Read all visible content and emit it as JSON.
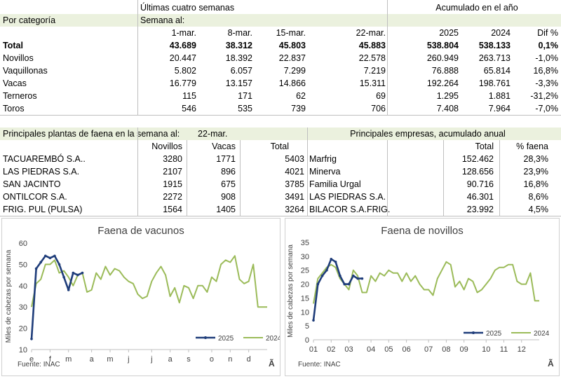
{
  "summary": {
    "section_label": "Últimas cuatro semanas",
    "acum_label": "Acumulado en el año",
    "category_label": "Por categoría",
    "week_label": "Semana al:",
    "weeks": [
      "1-mar.",
      "8-mar.",
      "15-mar.",
      "22-mar."
    ],
    "years": [
      "2025",
      "2024"
    ],
    "diff_label": "Dif %",
    "rows": [
      {
        "name": "Total",
        "w": [
          "43.689",
          "38.312",
          "45.803",
          "45.883"
        ],
        "y2025": "538.804",
        "y2024": "538.133",
        "dif": "0,1%"
      },
      {
        "name": "Novillos",
        "w": [
          "20.447",
          "18.392",
          "22.837",
          "22.578"
        ],
        "y2025": "260.949",
        "y2024": "263.713",
        "dif": "-1,0%"
      },
      {
        "name": "Vaquillonas",
        "w": [
          "5.802",
          "6.057",
          "7.299",
          "7.219"
        ],
        "y2025": "76.888",
        "y2024": "65.814",
        "dif": "16,8%"
      },
      {
        "name": "Vacas",
        "w": [
          "16.779",
          "13.157",
          "14.866",
          "15.311"
        ],
        "y2025": "192.264",
        "y2024": "198.761",
        "dif": "-3,3%"
      },
      {
        "name": "Terneros",
        "w": [
          "115",
          "171",
          "62",
          "69"
        ],
        "y2025": "1.295",
        "y2024": "1.881",
        "dif": "-31,2%"
      },
      {
        "name": "Toros",
        "w": [
          "546",
          "535",
          "739",
          "706"
        ],
        "y2025": "7.408",
        "y2024": "7.964",
        "dif": "-7,0%"
      }
    ]
  },
  "plants": {
    "title": "Principales plantas de faena en la semana al:",
    "date": "22-mar.",
    "cols": [
      "Novillos",
      "Vacas",
      "Total"
    ],
    "rows": [
      {
        "name": "TACUAREMBÓ S.A..",
        "novillos": "3280",
        "vacas": "1771",
        "total": "5403"
      },
      {
        "name": "LAS PIEDRAS S.A.",
        "novillos": "2107",
        "vacas": "896",
        "total": "4021"
      },
      {
        "name": "SAN JACINTO",
        "novillos": "1915",
        "vacas": "675",
        "total": "3785"
      },
      {
        "name": "ONTILCOR S.A.",
        "novillos": "2272",
        "vacas": "908",
        "total": "3491"
      },
      {
        "name": "FRIG. PUL (PULSA)",
        "novillos": "1564",
        "vacas": "1405",
        "total": "3264"
      }
    ]
  },
  "companies": {
    "title": "Principales empresas, acumulado anual",
    "cols": [
      "Total",
      "% faena"
    ],
    "rows": [
      {
        "name": "Marfrig",
        "total": "152.462",
        "pct": "28,3%"
      },
      {
        "name": "Minerva",
        "total": "128.656",
        "pct": "23,9%"
      },
      {
        "name": "Familia Urgal",
        "total": "90.716",
        "pct": "16,8%"
      },
      {
        "name": "LAS PIEDRAS S.A.",
        "total": "46.301",
        "pct": "8,6%"
      },
      {
        "name": "BILACOR S.A.FRIG.",
        "total": "23.992",
        "pct": "4,5%"
      }
    ]
  },
  "colors": {
    "s2025": "#1f3d7a",
    "s2024": "#9bbb59",
    "header_bg": "#ebf1de"
  },
  "chart_data": [
    {
      "type": "line",
      "title": "Faena de vacunos",
      "ylabel": "Miles de cabezas por semana",
      "source": "Fuente: INAC",
      "corner_mark": "Ã",
      "ylim": [
        10,
        60
      ],
      "yticks": [
        "10",
        "20",
        "30",
        "40",
        "50",
        "60"
      ],
      "xlim": [
        1,
        52
      ],
      "xticks": [
        {
          "label": "e",
          "x": 1
        },
        {
          "label": "f",
          "x": 5
        },
        {
          "label": "m",
          "x": 9
        },
        {
          "label": "a",
          "x": 14
        },
        {
          "label": "m",
          "x": 18
        },
        {
          "label": "j",
          "x": 22
        },
        {
          "label": "j",
          "x": 27
        },
        {
          "label": "a",
          "x": 31
        },
        {
          "label": "s",
          "x": 35
        },
        {
          "label": "o",
          "x": 40
        },
        {
          "label": "n",
          "x": 44
        },
        {
          "label": "d",
          "x": 48
        }
      ],
      "legend_position": "bottom-right",
      "series": [
        {
          "name": "2025",
          "x": [
            1,
            2,
            3,
            4,
            5,
            6,
            7,
            8,
            9,
            10,
            11,
            12
          ],
          "values": [
            15,
            48,
            51,
            54,
            53,
            54,
            50,
            44,
            38,
            46,
            45,
            46
          ],
          "markers": true
        },
        {
          "name": "2024",
          "x": [
            1,
            2,
            3,
            4,
            5,
            6,
            7,
            8,
            9,
            10,
            11,
            12,
            13,
            14,
            15,
            16,
            17,
            18,
            19,
            20,
            21,
            22,
            23,
            24,
            25,
            26,
            27,
            28,
            29,
            30,
            31,
            32,
            33,
            34,
            35,
            36,
            37,
            38,
            39,
            40,
            41,
            42,
            43,
            44,
            45,
            46,
            47,
            48,
            49,
            50,
            51,
            52
          ],
          "values": [
            30,
            41,
            43,
            50,
            50,
            52,
            46,
            47,
            44,
            40,
            45,
            46,
            37,
            38,
            46,
            43,
            49,
            45,
            48,
            47,
            44,
            42,
            41,
            36,
            34,
            35,
            42,
            46,
            49,
            45,
            35,
            39,
            32,
            40,
            39,
            34,
            40,
            40,
            37,
            44,
            42,
            50,
            52,
            51,
            54,
            43,
            41,
            42,
            50,
            30,
            30,
            30
          ]
        }
      ]
    },
    {
      "type": "line",
      "title": "Faena de novillos",
      "ylabel": "Miles de cabezas por semana",
      "source": "Fuente: INAC",
      "corner_mark": "Ã",
      "ylim": [
        0,
        35
      ],
      "yticks": [
        "0",
        "5",
        "10",
        "15",
        "20",
        "25",
        "30",
        "35"
      ],
      "xlim": [
        1,
        52
      ],
      "xticks": [
        {
          "label": "01",
          "x": 1
        },
        {
          "label": "02",
          "x": 5
        },
        {
          "label": "03",
          "x": 9
        },
        {
          "label": "04",
          "x": 14
        },
        {
          "label": "05",
          "x": 18
        },
        {
          "label": "06",
          "x": 22
        },
        {
          "label": "07",
          "x": 27
        },
        {
          "label": "08",
          "x": 31
        },
        {
          "label": "09",
          "x": 35
        },
        {
          "label": "10",
          "x": 40
        },
        {
          "label": "11",
          "x": 44
        },
        {
          "label": "12",
          "x": 48
        }
      ],
      "legend_position": "bottom-right",
      "series": [
        {
          "name": "2025",
          "x": [
            1,
            2,
            3,
            4,
            5,
            6,
            7,
            8,
            9,
            10,
            11,
            12
          ],
          "values": [
            7,
            20,
            23,
            25,
            29,
            28,
            23,
            20,
            20,
            23,
            22,
            22
          ],
          "markers": true
        },
        {
          "name": "2024",
          "x": [
            1,
            2,
            3,
            4,
            5,
            6,
            7,
            8,
            9,
            10,
            11,
            12,
            13,
            14,
            15,
            16,
            17,
            18,
            19,
            20,
            21,
            22,
            23,
            24,
            25,
            26,
            27,
            28,
            29,
            30,
            31,
            32,
            33,
            34,
            35,
            36,
            37,
            38,
            39,
            40,
            41,
            42,
            43,
            44,
            45,
            46,
            47,
            48,
            49,
            50,
            51,
            52
          ],
          "values": [
            13,
            22,
            24,
            26,
            27,
            26,
            22,
            20,
            18,
            25,
            23,
            17,
            17,
            23,
            21,
            24,
            23,
            25,
            24,
            24,
            21,
            24,
            21,
            23,
            20,
            18,
            18,
            16,
            22,
            25,
            28,
            27,
            19,
            21,
            18,
            22,
            21,
            17,
            18,
            20,
            22,
            25,
            26,
            26,
            27,
            27,
            21,
            20,
            20,
            24,
            14,
            14
          ]
        }
      ]
    }
  ]
}
